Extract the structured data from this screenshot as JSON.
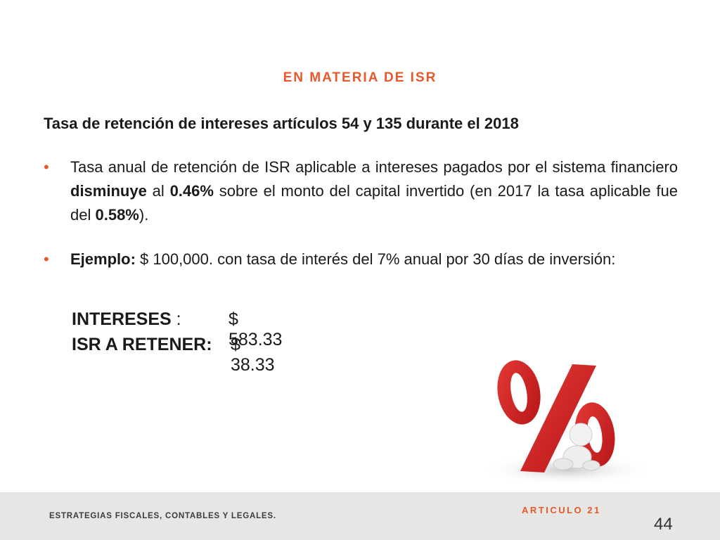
{
  "header": {
    "title": "EN MATERIA DE ISR"
  },
  "subtitle": "Tasa de retención de intereses artículos 54 y 135 durante el 2018",
  "bullets": [
    {
      "parts": [
        "Tasa anual de retención de ISR aplicable a intereses pagados por el sistema financiero ",
        "disminuye",
        " al ",
        "0.46%",
        " sobre el monto del capital invertido (en 2017 la tasa aplicable fue del ",
        "0.58%",
        ")."
      ]
    },
    {
      "parts": [
        "Ejemplo:",
        " $ 100,000. con tasa de interés del 7% anual por 30 días de inversión:"
      ]
    }
  ],
  "calc": {
    "interest_label": "INTERESES",
    "interest_sep": " :",
    "interest_value": "$ 583.33",
    "isr_label": "ISR  A RETENER:",
    "isr_value": "$ 38.33"
  },
  "graphic": {
    "icon": "percent-figure-icon",
    "color": "#d0201f"
  },
  "footer": {
    "brand": "ESTRATEGIAS FISCALES, CONTABLES Y LEGALES.",
    "section": "ARTICULO 21",
    "page": "44"
  },
  "colors": {
    "accent": "#e8582a",
    "footer_bg": "#e6e6e4",
    "text": "#1a1a1a"
  }
}
